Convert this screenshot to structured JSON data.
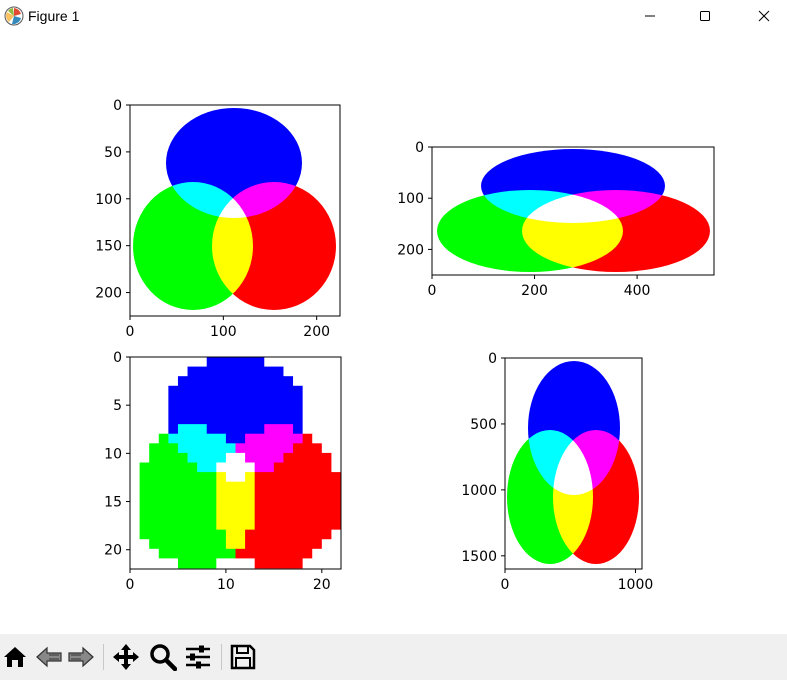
{
  "window": {
    "title": "Figure 1",
    "icon": "matplotlib-icon",
    "controls": [
      "minimize-icon",
      "maximize-icon",
      "close-icon"
    ]
  },
  "toolbar": {
    "buttons": [
      {
        "name": "home-button",
        "icon": "home-icon"
      },
      {
        "name": "back-button",
        "icon": "back-arrow-icon"
      },
      {
        "name": "forward-button",
        "icon": "forward-arrow-icon"
      },
      {
        "name": "pan-button",
        "icon": "move-icon"
      },
      {
        "name": "zoom-button",
        "icon": "magnifier-icon"
      },
      {
        "name": "configure-subplots-button",
        "icon": "sliders-icon"
      },
      {
        "name": "save-button",
        "icon": "floppy-disk-icon"
      }
    ]
  },
  "chart_data": [
    {
      "type": "image",
      "xlim": [
        0,
        225
      ],
      "ylim": [
        225,
        0
      ],
      "xticks": [
        "0",
        "100",
        "200"
      ],
      "yticks": [
        "0",
        "50",
        "100",
        "150",
        "200"
      ],
      "xtick_values": [
        0,
        100,
        200
      ],
      "ytick_values": [
        0,
        50,
        100,
        150,
        200
      ]
    },
    {
      "type": "image",
      "xlim": [
        0,
        550
      ],
      "ylim": [
        250,
        0
      ],
      "xticks": [
        "0",
        "200",
        "400"
      ],
      "yticks": [
        "0",
        "100",
        "200"
      ],
      "xtick_values": [
        0,
        200,
        400
      ],
      "ytick_values": [
        0,
        100,
        200
      ]
    },
    {
      "type": "image",
      "xlim": [
        0,
        22
      ],
      "ylim": [
        22,
        0
      ],
      "xticks": [
        "0",
        "10",
        "20"
      ],
      "yticks": [
        "0",
        "5",
        "10",
        "15",
        "20"
      ],
      "xtick_values": [
        0,
        10,
        20
      ],
      "ytick_values": [
        0,
        5,
        10,
        15,
        20
      ]
    },
    {
      "type": "image",
      "xlim": [
        0,
        1050
      ],
      "ylim": [
        1600,
        0
      ],
      "xticks": [
        "0",
        "1000"
      ],
      "yticks": [
        "0",
        "500",
        "1000",
        "1500"
      ],
      "xtick_values": [
        0,
        1000
      ],
      "ytick_values": [
        0,
        500,
        1000,
        1500
      ]
    }
  ],
  "colors": {
    "blue": "#0000ff",
    "green": "#00ff00",
    "red": "#ff0000",
    "cyan": "#00ffff",
    "magenta": "#ff00ff",
    "yellow": "#ffff00",
    "white": "#ffffff"
  }
}
